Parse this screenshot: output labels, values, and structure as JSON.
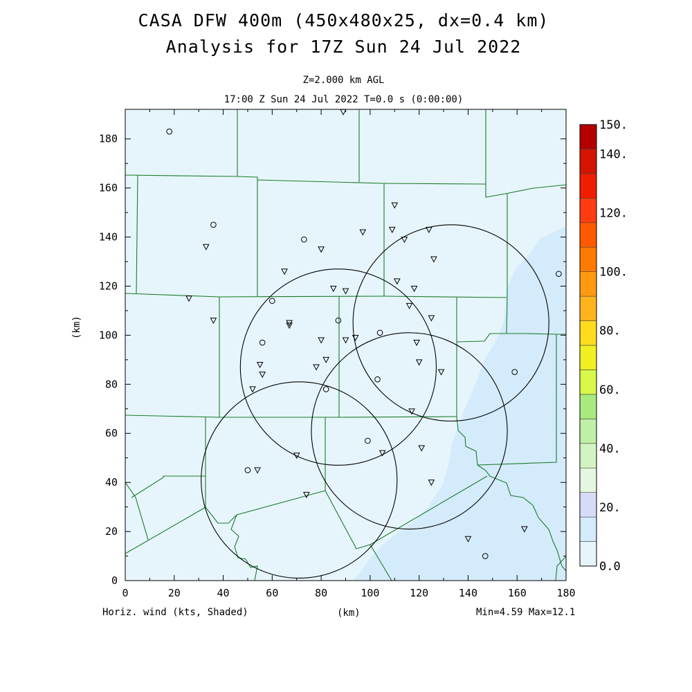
{
  "header": {
    "title_line1": "CASA DFW 400m (450x480x25, dx=0.4 km)",
    "title_line2": "Analysis for 17Z Sun 24 Jul 2022",
    "level": "Z=2.000 km AGL",
    "valid_time": "17:00 Z Sun 24 Jul 2022    T=0.0 s (0:00:00)"
  },
  "axes": {
    "x_label": "(km)",
    "y_label": "(km)",
    "x_ticks": [
      "0",
      "20",
      "40",
      "60",
      "80",
      "100",
      "120",
      "140",
      "160",
      "180"
    ],
    "y_ticks": [
      "0",
      "20",
      "40",
      "60",
      "80",
      "100",
      "120",
      "140",
      "160",
      "180"
    ]
  },
  "footer": {
    "field_label": "Horiz. wind (kts, Shaded)",
    "minmax": "Min=4.59 Max=12.1"
  },
  "colorbar": {
    "labels": [
      "150.",
      "140.",
      "120.",
      "100.",
      "80.",
      "60.",
      "40.",
      "20.",
      "0.0"
    ],
    "colors": [
      "#e6f5fb",
      "#d4ebfb",
      "#d6dcf8",
      "#e4f7e0",
      "#d2f4c2",
      "#bff0a8",
      "#a8ea7e",
      "#d8f84a",
      "#eef022",
      "#ffdc1e",
      "#ffb41e",
      "#ff9a10",
      "#ff7a00",
      "#ff5a00",
      "#ff3c10",
      "#f01e00",
      "#d41400",
      "#b40000"
    ]
  },
  "map": {
    "background_color": "#e6f5fb",
    "shade_color": "#d4ebfb",
    "boundary_color": "#1c7a28",
    "radar_ranges": [
      {
        "x_km": 87,
        "y_km": 87,
        "r_km": 40
      },
      {
        "x_km": 116,
        "y_km": 61,
        "r_km": 40
      },
      {
        "x_km": 133,
        "y_km": 105,
        "r_km": 40
      },
      {
        "x_km": 71,
        "y_km": 41,
        "r_km": 40
      }
    ],
    "stations_triangle": [
      [
        89,
        191
      ],
      [
        110,
        153
      ],
      [
        97,
        142
      ],
      [
        109,
        143
      ],
      [
        114,
        139
      ],
      [
        124,
        143
      ],
      [
        80,
        135
      ],
      [
        33,
        136
      ],
      [
        126,
        131
      ],
      [
        65,
        126
      ],
      [
        111,
        122
      ],
      [
        85,
        119
      ],
      [
        90,
        118
      ],
      [
        118,
        119
      ],
      [
        26,
        115
      ],
      [
        116,
        112
      ],
      [
        36,
        106
      ],
      [
        67,
        105
      ],
      [
        67,
        104
      ],
      [
        125,
        107
      ],
      [
        80,
        98
      ],
      [
        90,
        98
      ],
      [
        94,
        99
      ],
      [
        119,
        97
      ],
      [
        78,
        87
      ],
      [
        82,
        90
      ],
      [
        55,
        88
      ],
      [
        56,
        84
      ],
      [
        52,
        78
      ],
      [
        120,
        89
      ],
      [
        129,
        85
      ],
      [
        117,
        69
      ],
      [
        70,
        51
      ],
      [
        105,
        52
      ],
      [
        121,
        54
      ],
      [
        54,
        45
      ],
      [
        125,
        40
      ],
      [
        74,
        35
      ],
      [
        140,
        17
      ],
      [
        163,
        21
      ]
    ],
    "stations_circle": [
      [
        18,
        183
      ],
      [
        36,
        145
      ],
      [
        73,
        139
      ],
      [
        60,
        114
      ],
      [
        87,
        106
      ],
      [
        56,
        97
      ],
      [
        104,
        101
      ],
      [
        103,
        82
      ],
      [
        82,
        78
      ],
      [
        99,
        57
      ],
      [
        50,
        45
      ],
      [
        159,
        85
      ],
      [
        177,
        125
      ],
      [
        147,
        10
      ]
    ]
  }
}
